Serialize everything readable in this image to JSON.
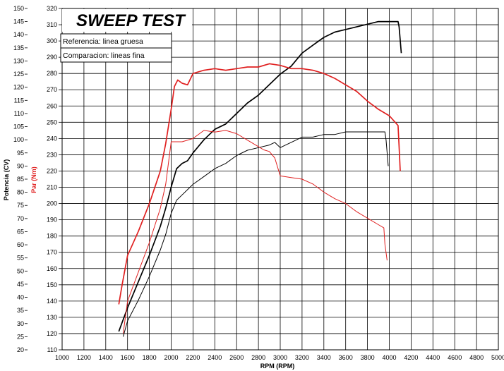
{
  "chart_data": {
    "type": "line",
    "title": "SWEEP TEST",
    "legend": [
      "Referencia: linea gruesa",
      "Comparacion: lineas fina"
    ],
    "xlabel": "RPM (RPM)",
    "ylabel_left": "Potencia (CV)",
    "ylabel_right": "Par (Nm)",
    "xlim": [
      1000,
      5000
    ],
    "ylim_left": [
      20,
      150
    ],
    "ylim_right": [
      110,
      320
    ],
    "x_ticks": [
      1000,
      1200,
      1400,
      1600,
      1800,
      2000,
      2200,
      2400,
      2600,
      2800,
      3000,
      3200,
      3400,
      3600,
      3800,
      4000,
      4200,
      4400,
      4600,
      4800,
      5000
    ],
    "left_ticks": [
      20,
      25,
      30,
      35,
      40,
      45,
      50,
      55,
      60,
      65,
      70,
      75,
      80,
      85,
      90,
      95,
      100,
      105,
      110,
      115,
      120,
      125,
      130,
      135,
      140,
      145,
      150
    ],
    "right_ticks": [
      110,
      120,
      130,
      140,
      150,
      160,
      170,
      180,
      190,
      200,
      210,
      220,
      230,
      240,
      250,
      260,
      270,
      280,
      290,
      300,
      310,
      320
    ],
    "grid": true,
    "colors": {
      "power": "#000000",
      "torque": "#e02020"
    },
    "series": [
      {
        "axis": "left",
        "color": "#000000",
        "weight": "thick",
        "points": [
          [
            1520,
            27
          ],
          [
            1600,
            36
          ],
          [
            1700,
            46
          ],
          [
            1800,
            56
          ],
          [
            1900,
            67
          ],
          [
            1950,
            74
          ],
          [
            2000,
            82
          ],
          [
            2050,
            89
          ],
          [
            2100,
            91
          ],
          [
            2150,
            92
          ],
          [
            2200,
            95
          ],
          [
            2300,
            100
          ],
          [
            2400,
            104
          ],
          [
            2500,
            106
          ],
          [
            2600,
            110
          ],
          [
            2700,
            114
          ],
          [
            2800,
            117
          ],
          [
            2900,
            121
          ],
          [
            3000,
            125
          ],
          [
            3100,
            128
          ],
          [
            3200,
            133
          ],
          [
            3300,
            136
          ],
          [
            3400,
            139
          ],
          [
            3500,
            141
          ],
          [
            3600,
            142
          ],
          [
            3700,
            143
          ],
          [
            3800,
            144
          ],
          [
            3900,
            145
          ],
          [
            4000,
            145
          ],
          [
            4080,
            145
          ],
          [
            4090,
            143
          ],
          [
            4110,
            133
          ]
        ]
      },
      {
        "axis": "left",
        "color": "#000000",
        "weight": "thin",
        "points": [
          [
            1560,
            25
          ],
          [
            1600,
            31
          ],
          [
            1700,
            39
          ],
          [
            1800,
            48
          ],
          [
            1900,
            58
          ],
          [
            1950,
            64
          ],
          [
            2000,
            72
          ],
          [
            2050,
            77
          ],
          [
            2100,
            79
          ],
          [
            2200,
            83
          ],
          [
            2300,
            86
          ],
          [
            2400,
            89
          ],
          [
            2500,
            91
          ],
          [
            2600,
            94
          ],
          [
            2700,
            96
          ],
          [
            2800,
            97
          ],
          [
            2900,
            98
          ],
          [
            2950,
            99
          ],
          [
            3000,
            97
          ],
          [
            3050,
            98
          ],
          [
            3100,
            99
          ],
          [
            3200,
            101
          ],
          [
            3300,
            101
          ],
          [
            3400,
            102
          ],
          [
            3500,
            102
          ],
          [
            3600,
            103
          ],
          [
            3700,
            103
          ],
          [
            3800,
            103
          ],
          [
            3900,
            103
          ],
          [
            3960,
            103
          ],
          [
            3970,
            100
          ],
          [
            3990,
            90
          ]
        ]
      },
      {
        "axis": "right",
        "color": "#e02020",
        "weight": "thick",
        "points": [
          [
            1520,
            138
          ],
          [
            1550,
            150
          ],
          [
            1600,
            168
          ],
          [
            1700,
            183
          ],
          [
            1800,
            200
          ],
          [
            1900,
            220
          ],
          [
            1950,
            237
          ],
          [
            2000,
            258
          ],
          [
            2030,
            272
          ],
          [
            2060,
            276
          ],
          [
            2100,
            274
          ],
          [
            2150,
            273
          ],
          [
            2200,
            280
          ],
          [
            2300,
            282
          ],
          [
            2400,
            283
          ],
          [
            2500,
            282
          ],
          [
            2600,
            283
          ],
          [
            2700,
            284
          ],
          [
            2800,
            284
          ],
          [
            2900,
            286
          ],
          [
            3000,
            285
          ],
          [
            3100,
            283
          ],
          [
            3200,
            283
          ],
          [
            3300,
            282
          ],
          [
            3400,
            280
          ],
          [
            3500,
            277
          ],
          [
            3600,
            273
          ],
          [
            3700,
            269
          ],
          [
            3800,
            263
          ],
          [
            3900,
            258
          ],
          [
            4000,
            254
          ],
          [
            4080,
            248
          ],
          [
            4090,
            235
          ],
          [
            4100,
            220
          ]
        ]
      },
      {
        "axis": "right",
        "color": "#e02020",
        "weight": "thin",
        "points": [
          [
            1560,
            120
          ],
          [
            1600,
            140
          ],
          [
            1700,
            158
          ],
          [
            1800,
            176
          ],
          [
            1900,
            197
          ],
          [
            1950,
            212
          ],
          [
            2000,
            238
          ],
          [
            2050,
            238
          ],
          [
            2100,
            238
          ],
          [
            2200,
            240
          ],
          [
            2300,
            245
          ],
          [
            2400,
            244
          ],
          [
            2500,
            245
          ],
          [
            2600,
            243
          ],
          [
            2700,
            239
          ],
          [
            2800,
            235
          ],
          [
            2850,
            233
          ],
          [
            2900,
            232
          ],
          [
            2950,
            228
          ],
          [
            3000,
            217
          ],
          [
            3100,
            216
          ],
          [
            3200,
            215
          ],
          [
            3300,
            212
          ],
          [
            3400,
            207
          ],
          [
            3500,
            203
          ],
          [
            3600,
            200
          ],
          [
            3700,
            195
          ],
          [
            3800,
            191
          ],
          [
            3900,
            187
          ],
          [
            3950,
            185
          ],
          [
            3960,
            175
          ],
          [
            3980,
            165
          ]
        ]
      }
    ]
  }
}
